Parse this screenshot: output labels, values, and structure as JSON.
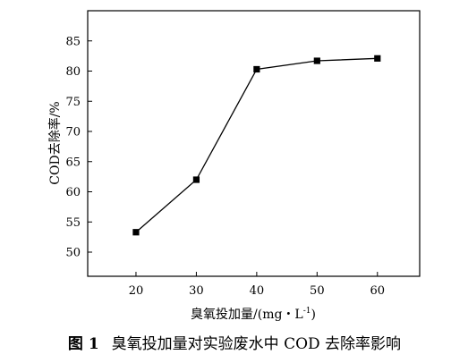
{
  "chart_data": {
    "type": "line",
    "title": "",
    "xlabel_main": "臭氧投加量/(mg・L",
    "xlabel_sup": "-1",
    "xlabel_tail": ")",
    "ylabel": "COD去除率/%",
    "x": [
      20,
      30,
      40,
      50,
      60
    ],
    "series": [
      {
        "values": [
          53.3,
          62.0,
          80.3,
          81.7,
          82.1
        ]
      }
    ],
    "x_ticks": [
      "20",
      "30",
      "40",
      "50",
      "60"
    ],
    "y_ticks": [
      "50",
      "55",
      "60",
      "65",
      "70",
      "75",
      "80",
      "85"
    ],
    "xlim": [
      12,
      67
    ],
    "ylim": [
      46,
      90
    ],
    "grid": false,
    "line_color": "#000000",
    "marker": "square"
  },
  "caption": {
    "number": "图 1",
    "text": "臭氧投加量对实验废水中 COD 去除率影响"
  }
}
